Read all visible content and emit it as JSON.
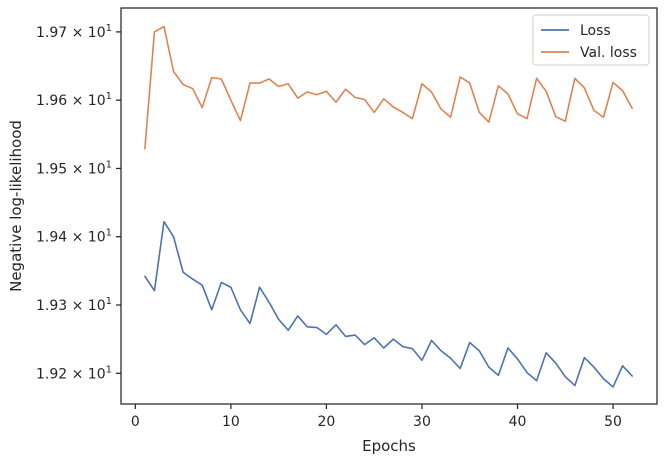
{
  "chart_data": {
    "type": "line",
    "xlabel": "Epochs",
    "ylabel": "Negative log-likelihood",
    "xlim": [
      -1.5,
      54.6
    ],
    "ylim": [
      19.155,
      19.735
    ],
    "x_ticks": [
      0,
      10,
      20,
      30,
      40,
      50
    ],
    "y_ticks": [
      {
        "value": 19.2,
        "mantissa": "1.92",
        "base": "10",
        "exp": "1"
      },
      {
        "value": 19.3,
        "mantissa": "1.93",
        "base": "10",
        "exp": "1"
      },
      {
        "value": 19.4,
        "mantissa": "1.94",
        "base": "10",
        "exp": "1"
      },
      {
        "value": 19.5,
        "mantissa": "1.95",
        "base": "10",
        "exp": "1"
      },
      {
        "value": 19.6,
        "mantissa": "1.96",
        "base": "10",
        "exp": "1"
      },
      {
        "value": 19.7,
        "mantissa": "1.97",
        "base": "10",
        "exp": "1"
      }
    ],
    "y_multiply_sign": "×",
    "grid": false,
    "legend_position": "top-right",
    "x": [
      1,
      2,
      3,
      4,
      5,
      6,
      7,
      8,
      9,
      10,
      11,
      12,
      13,
      14,
      15,
      16,
      17,
      18,
      19,
      20,
      21,
      22,
      23,
      24,
      25,
      26,
      27,
      28,
      29,
      30,
      31,
      32,
      33,
      34,
      35,
      36,
      37,
      38,
      39,
      40,
      41,
      42,
      43,
      44,
      45,
      46,
      47,
      48,
      49,
      50,
      51,
      52
    ],
    "series": [
      {
        "name": "Loss",
        "color": "#4c72b0",
        "values": [
          19.342,
          19.321,
          19.422,
          19.4,
          19.348,
          19.338,
          19.329,
          19.293,
          19.333,
          19.326,
          19.293,
          19.273,
          19.326,
          19.304,
          19.279,
          19.263,
          19.284,
          19.268,
          19.267,
          19.257,
          19.271,
          19.254,
          19.256,
          19.242,
          19.252,
          19.237,
          19.25,
          19.239,
          19.236,
          19.219,
          19.248,
          19.233,
          19.222,
          19.207,
          19.245,
          19.233,
          19.209,
          19.197,
          19.237,
          19.221,
          19.201,
          19.189,
          19.23,
          19.215,
          19.195,
          19.182,
          19.223,
          19.209,
          19.192,
          19.18,
          19.211,
          19.196
        ]
      },
      {
        "name": "Val. loss",
        "color": "#dd8452",
        "values": [
          19.529,
          19.7,
          19.708,
          19.642,
          19.623,
          19.617,
          19.589,
          19.633,
          19.631,
          19.6,
          19.57,
          19.625,
          19.625,
          19.631,
          19.62,
          19.624,
          19.603,
          19.612,
          19.608,
          19.613,
          19.597,
          19.616,
          19.604,
          19.601,
          19.582,
          19.602,
          19.59,
          19.582,
          19.573,
          19.624,
          19.612,
          19.587,
          19.575,
          19.634,
          19.625,
          19.582,
          19.568,
          19.621,
          19.609,
          19.58,
          19.573,
          19.632,
          19.613,
          19.576,
          19.569,
          19.632,
          19.618,
          19.585,
          19.575,
          19.626,
          19.614,
          19.588
        ]
      }
    ]
  }
}
